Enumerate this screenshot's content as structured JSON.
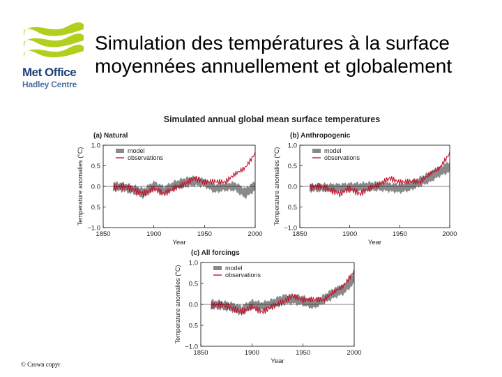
{
  "slide_title": "Simulation des températures à la surface moyennées annuellement et globalement",
  "logo": {
    "line1": "Met Office",
    "line2": "Hadley Centre"
  },
  "copyright": "© Crown copyr",
  "colors": {
    "model_band": "#8a8a8a",
    "observations": "#c4122f",
    "logo_green": "#b3cf1e",
    "logo_blue": "#1e3f7a"
  },
  "figure_title": "Simulated annual global mean surface temperatures",
  "chart_data": [
    {
      "type": "area",
      "title": "(a) Natural",
      "xlabel": "Year",
      "ylabel": "Temperature anomalies (°C)",
      "xlim": [
        1850,
        2000
      ],
      "ylim": [
        -1.0,
        1.0
      ],
      "xticks": [
        "1850",
        "1900",
        "1950",
        "2000"
      ],
      "yticks": [
        "1.0",
        "0.5",
        "0.0",
        "0.5",
        "−1.0"
      ],
      "legend": [
        "model",
        "observations"
      ],
      "legend_position": "top-left",
      "x": [
        1860,
        1870,
        1880,
        1890,
        1900,
        1910,
        1920,
        1930,
        1940,
        1950,
        1960,
        1970,
        1980,
        1990,
        2000
      ],
      "series": [
        {
          "name": "model",
          "lower": [
            -0.1,
            -0.12,
            -0.18,
            -0.28,
            -0.08,
            -0.2,
            -0.08,
            -0.02,
            0.02,
            0.0,
            -0.15,
            -0.1,
            -0.1,
            -0.28,
            -0.1
          ],
          "upper": [
            0.1,
            0.08,
            0.02,
            -0.05,
            0.12,
            0.0,
            0.12,
            0.2,
            0.24,
            0.18,
            0.05,
            0.08,
            0.1,
            -0.05,
            0.12
          ]
        },
        {
          "name": "observations",
          "values": [
            -0.03,
            0.0,
            -0.08,
            -0.18,
            -0.05,
            -0.18,
            -0.05,
            0.05,
            0.2,
            0.1,
            0.12,
            0.1,
            0.3,
            0.45,
            0.8
          ]
        }
      ]
    },
    {
      "type": "area",
      "title": "(b) Anthropogenic",
      "xlabel": "Year",
      "ylabel": "Temperature anomalies (°C)",
      "xlim": [
        1850,
        2000
      ],
      "ylim": [
        -1.0,
        1.0
      ],
      "xticks": [
        "1850",
        "1900",
        "1950",
        "2000"
      ],
      "yticks": [
        "1.0",
        "0.5",
        "0.0",
        "0.5",
        "−1.0"
      ],
      "legend": [
        "model",
        "observations"
      ],
      "legend_position": "top-left",
      "x": [
        1860,
        1870,
        1880,
        1890,
        1900,
        1910,
        1920,
        1930,
        1940,
        1950,
        1960,
        1970,
        1980,
        1990,
        2000
      ],
      "series": [
        {
          "name": "model",
          "lower": [
            -0.12,
            -0.12,
            -0.12,
            -0.12,
            -0.12,
            -0.12,
            -0.1,
            -0.1,
            -0.12,
            -0.15,
            -0.1,
            0.0,
            0.1,
            0.25,
            0.35
          ],
          "upper": [
            0.05,
            0.06,
            0.06,
            0.06,
            0.08,
            0.08,
            0.1,
            0.1,
            0.08,
            0.05,
            0.12,
            0.22,
            0.35,
            0.48,
            0.6
          ]
        },
        {
          "name": "observations",
          "values": [
            -0.03,
            0.0,
            -0.08,
            -0.18,
            -0.05,
            -0.18,
            -0.05,
            0.05,
            0.2,
            0.1,
            0.12,
            0.1,
            0.3,
            0.45,
            0.8
          ]
        }
      ]
    },
    {
      "type": "area",
      "title": "(c) All forcings",
      "xlabel": "Year",
      "ylabel": "Temperature anomalies (°C)",
      "xlim": [
        1850,
        2000
      ],
      "ylim": [
        -1.0,
        1.0
      ],
      "xticks": [
        "1850",
        "1900",
        "1950",
        "2000"
      ],
      "yticks": [
        "1.0",
        "0.5",
        "0.0",
        "0.5",
        "−1.0"
      ],
      "legend": [
        "model",
        "observations"
      ],
      "legend_position": "top-left",
      "x": [
        1860,
        1870,
        1880,
        1890,
        1900,
        1910,
        1920,
        1930,
        1940,
        1950,
        1960,
        1970,
        1980,
        1990,
        2000
      ],
      "series": [
        {
          "name": "model",
          "lower": [
            -0.1,
            -0.12,
            -0.16,
            -0.25,
            -0.1,
            -0.15,
            -0.08,
            0.0,
            0.02,
            -0.02,
            -0.1,
            0.02,
            0.15,
            0.25,
            0.5
          ],
          "upper": [
            0.1,
            0.08,
            0.04,
            -0.04,
            0.1,
            0.05,
            0.12,
            0.22,
            0.24,
            0.2,
            0.1,
            0.22,
            0.38,
            0.48,
            0.78
          ]
        },
        {
          "name": "observations",
          "values": [
            -0.03,
            0.0,
            -0.08,
            -0.18,
            -0.05,
            -0.18,
            -0.05,
            0.05,
            0.2,
            0.1,
            0.12,
            0.1,
            0.3,
            0.45,
            0.8
          ]
        }
      ]
    }
  ]
}
